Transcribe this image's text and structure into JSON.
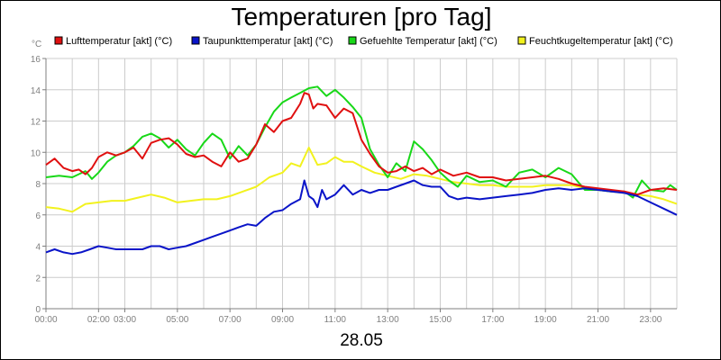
{
  "chart_data": {
    "type": "line",
    "title": "Temperaturen [pro Tag]",
    "xlabel": "28.05",
    "ylabel": "°C",
    "xlim": [
      0,
      24
    ],
    "ylim": [
      0,
      16
    ],
    "yticks": [
      0,
      2,
      4,
      6,
      8,
      10,
      12,
      14,
      16
    ],
    "xticks": [
      {
        "h": 0,
        "label": "00:00"
      },
      {
        "h": 2,
        "label": "02:00"
      },
      {
        "h": 3,
        "label": "03:00"
      },
      {
        "h": 5,
        "label": "05:00"
      },
      {
        "h": 7,
        "label": "07:00"
      },
      {
        "h": 9,
        "label": "09:00"
      },
      {
        "h": 11,
        "label": "11:00"
      },
      {
        "h": 13,
        "label": "13:00"
      },
      {
        "h": 15,
        "label": "15:00"
      },
      {
        "h": 17,
        "label": "17:00"
      },
      {
        "h": 19,
        "label": "19:00"
      },
      {
        "h": 21,
        "label": "21:00"
      },
      {
        "h": 23,
        "label": "23:00"
      }
    ],
    "grid": true,
    "legend_position": "top",
    "series": [
      {
        "name": "Lufttemperatur [akt] (°C)",
        "color": "#e01010",
        "x": [
          0,
          0.33,
          0.67,
          1,
          1.25,
          1.5,
          1.75,
          2,
          2.33,
          2.67,
          3,
          3.33,
          3.67,
          4,
          4.33,
          4.67,
          5,
          5.33,
          5.67,
          6,
          6.33,
          6.67,
          7,
          7.33,
          7.67,
          8,
          8.33,
          8.67,
          9,
          9.33,
          9.67,
          9.83,
          10,
          10.17,
          10.33,
          10.67,
          11,
          11.33,
          11.67,
          12,
          12.33,
          12.67,
          13,
          13.33,
          13.67,
          14,
          14.33,
          14.67,
          15,
          15.5,
          16,
          16.5,
          17,
          17.5,
          18,
          18.5,
          19,
          19.5,
          20,
          20.5,
          21,
          21.5,
          22,
          22.5,
          23,
          23.5,
          24
        ],
        "y": [
          9.2,
          9.6,
          9.0,
          8.8,
          8.9,
          8.6,
          9.0,
          9.7,
          10.0,
          9.8,
          10.0,
          10.3,
          9.6,
          10.6,
          10.8,
          10.9,
          10.5,
          9.9,
          9.7,
          9.8,
          9.4,
          9.1,
          10.0,
          9.4,
          9.6,
          10.5,
          11.8,
          11.3,
          12.0,
          12.2,
          13.1,
          13.8,
          13.7,
          12.8,
          13.1,
          13.0,
          12.2,
          12.8,
          12.5,
          10.8,
          9.9,
          9.1,
          8.7,
          8.8,
          9.1,
          8.8,
          9.0,
          8.6,
          8.9,
          8.5,
          8.7,
          8.4,
          8.4,
          8.2,
          8.3,
          8.4,
          8.5,
          8.3,
          8.0,
          7.8,
          7.7,
          7.6,
          7.5,
          7.3,
          7.6,
          7.7,
          7.6
        ]
      },
      {
        "name": "Taupunkttemperatur [akt] (°C)",
        "color": "#0a14c8",
        "x": [
          0,
          0.33,
          0.67,
          1,
          1.33,
          1.67,
          2,
          2.33,
          2.67,
          3,
          3.33,
          3.67,
          4,
          4.33,
          4.67,
          5,
          5.33,
          5.67,
          6,
          6.33,
          6.67,
          7,
          7.33,
          7.67,
          8,
          8.33,
          8.67,
          9,
          9.33,
          9.67,
          9.83,
          10,
          10.17,
          10.33,
          10.5,
          10.67,
          11,
          11.33,
          11.67,
          12,
          12.33,
          12.67,
          13,
          13.33,
          13.67,
          14,
          14.33,
          14.67,
          15,
          15.33,
          15.67,
          16,
          16.5,
          17,
          17.5,
          18,
          18.5,
          19,
          19.5,
          20,
          20.5,
          21,
          21.5,
          22,
          22.5,
          23,
          23.5,
          24
        ],
        "y": [
          3.6,
          3.8,
          3.6,
          3.5,
          3.6,
          3.8,
          4.0,
          3.9,
          3.8,
          3.8,
          3.8,
          3.8,
          4.0,
          4.0,
          3.8,
          3.9,
          4.0,
          4.2,
          4.4,
          4.6,
          4.8,
          5.0,
          5.2,
          5.4,
          5.3,
          5.8,
          6.2,
          6.3,
          6.7,
          7.0,
          8.2,
          7.2,
          7.0,
          6.5,
          7.6,
          7.0,
          7.3,
          7.9,
          7.3,
          7.6,
          7.4,
          7.6,
          7.6,
          7.8,
          8.0,
          8.2,
          7.9,
          7.8,
          7.8,
          7.2,
          7.0,
          7.1,
          7.0,
          7.1,
          7.2,
          7.3,
          7.4,
          7.6,
          7.7,
          7.6,
          7.7,
          7.6,
          7.5,
          7.4,
          7.2,
          6.8,
          6.4,
          6.0
        ]
      },
      {
        "name": "Gefuehlte Temperatur [akt] (°C)",
        "color": "#18d818",
        "x": [
          0,
          0.5,
          1,
          1.5,
          1.75,
          2,
          2.33,
          2.67,
          3,
          3.33,
          3.67,
          4,
          4.33,
          4.67,
          5,
          5.33,
          5.67,
          6,
          6.33,
          6.67,
          7,
          7.33,
          7.67,
          8,
          8.33,
          8.67,
          9,
          9.33,
          9.67,
          10,
          10.33,
          10.67,
          11,
          11.33,
          11.67,
          12,
          12.33,
          12.67,
          13,
          13.33,
          13.67,
          14,
          14.33,
          14.67,
          15,
          15.33,
          15.67,
          16,
          16.5,
          17,
          17.5,
          18,
          18.5,
          19,
          19.5,
          20,
          20.5,
          21,
          21.5,
          22,
          22.33,
          22.67,
          23,
          23.5,
          23.75,
          24
        ],
        "y": [
          8.4,
          8.5,
          8.4,
          8.8,
          8.3,
          8.7,
          9.4,
          9.8,
          10.0,
          10.4,
          11.0,
          11.2,
          10.9,
          10.3,
          10.8,
          10.2,
          9.8,
          10.6,
          11.2,
          10.8,
          9.6,
          10.4,
          9.8,
          10.5,
          11.6,
          12.6,
          13.2,
          13.5,
          13.8,
          14.1,
          14.2,
          13.6,
          14.0,
          13.5,
          12.9,
          12.2,
          10.2,
          9.2,
          8.4,
          9.3,
          8.8,
          10.7,
          10.2,
          9.5,
          8.7,
          8.2,
          7.8,
          8.5,
          8.1,
          8.2,
          7.8,
          8.7,
          8.9,
          8.4,
          9.0,
          8.6,
          7.6,
          7.6,
          7.5,
          7.5,
          7.1,
          8.2,
          7.6,
          7.5,
          7.9,
          7.6
        ]
      },
      {
        "name": "Feuchtkugeltemperatur [akt] (°C)",
        "color": "#f2f21e",
        "x": [
          0,
          0.5,
          1,
          1.5,
          2,
          2.5,
          3,
          3.5,
          4,
          4.5,
          5,
          5.5,
          6,
          6.5,
          7,
          7.5,
          8,
          8.5,
          9,
          9.33,
          9.67,
          10,
          10.33,
          10.67,
          11,
          11.33,
          11.67,
          12,
          12.5,
          13,
          13.5,
          14,
          14.5,
          15,
          15.5,
          16,
          16.5,
          17,
          17.5,
          18,
          18.5,
          19,
          19.5,
          20,
          20.5,
          21,
          21.5,
          22,
          22.5,
          23,
          23.5,
          24
        ],
        "y": [
          6.5,
          6.4,
          6.2,
          6.7,
          6.8,
          6.9,
          6.9,
          7.1,
          7.3,
          7.1,
          6.8,
          6.9,
          7.0,
          7.0,
          7.2,
          7.5,
          7.8,
          8.4,
          8.7,
          9.3,
          9.1,
          10.3,
          9.2,
          9.3,
          9.7,
          9.4,
          9.4,
          9.1,
          8.7,
          8.5,
          8.3,
          8.6,
          8.5,
          8.3,
          8.1,
          8.0,
          7.9,
          7.9,
          7.8,
          7.8,
          7.8,
          7.9,
          7.9,
          7.9,
          7.7,
          7.6,
          7.5,
          7.4,
          7.3,
          7.2,
          7.0,
          6.7
        ]
      }
    ]
  },
  "colors": {
    "background": "#ffffff",
    "grid": "#cccccc",
    "axis": "#7f7f7f",
    "frame": "#000000"
  }
}
